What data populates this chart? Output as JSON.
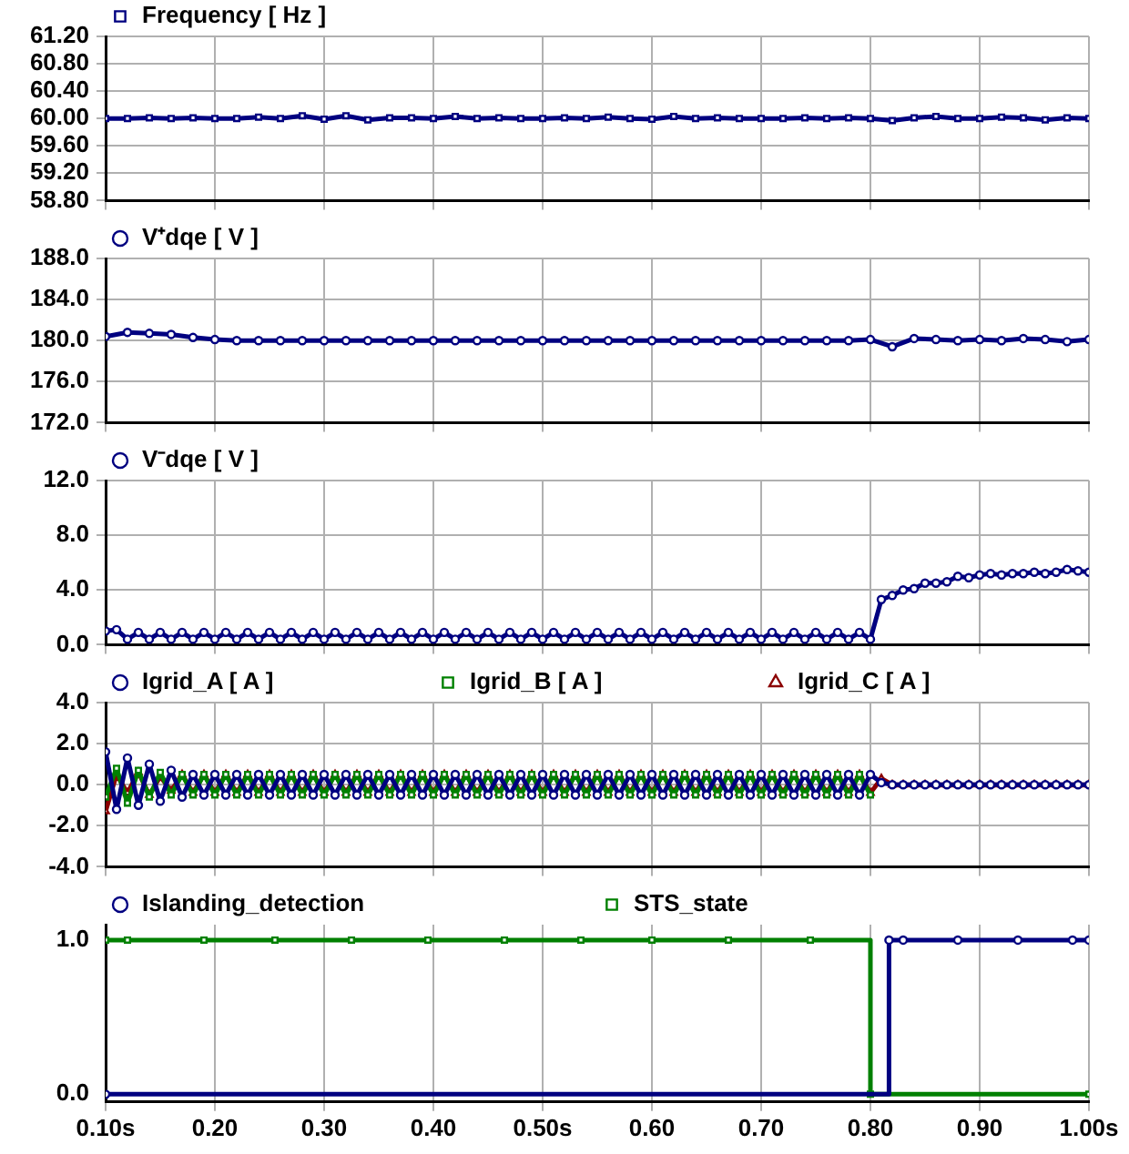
{
  "chart_data": [
    {
      "type": "line",
      "x": [
        0.1,
        0.12,
        0.14,
        0.16,
        0.18,
        0.2,
        0.22,
        0.24,
        0.26,
        0.28,
        0.3,
        0.32,
        0.34,
        0.36,
        0.38,
        0.4,
        0.42,
        0.44,
        0.46,
        0.48,
        0.5,
        0.52,
        0.54,
        0.56,
        0.58,
        0.6,
        0.62,
        0.64,
        0.66,
        0.68,
        0.7,
        0.72,
        0.74,
        0.76,
        0.78,
        0.8,
        0.82,
        0.84,
        0.86,
        0.88,
        0.9,
        0.92,
        0.94,
        0.96,
        0.98,
        1.0
      ],
      "series": [
        {
          "name": "Frequency [ Hz ]",
          "color": "#000080",
          "values": [
            60.0,
            60.0,
            60.01,
            60.0,
            60.01,
            60.0,
            60.0,
            60.02,
            60.0,
            60.04,
            59.99,
            60.04,
            59.98,
            60.01,
            60.01,
            60.0,
            60.03,
            60.0,
            60.01,
            60.0,
            60.0,
            60.01,
            60.0,
            60.02,
            60.0,
            59.99,
            60.03,
            60.0,
            60.01,
            60.0,
            60.0,
            60.0,
            60.01,
            60.0,
            60.01,
            60.0,
            59.97,
            60.01,
            60.03,
            60.0,
            60.0,
            60.02,
            60.01,
            59.98,
            60.01,
            60.0
          ]
        }
      ],
      "xlim": [
        0.1,
        1.0
      ],
      "xticks": [
        {
          "value": 0.1,
          "label": null
        },
        {
          "value": 0.2,
          "label": null
        },
        {
          "value": 0.3,
          "label": null
        },
        {
          "value": 0.4,
          "label": null
        },
        {
          "value": 0.5,
          "label": null
        },
        {
          "value": 0.6,
          "label": null
        },
        {
          "value": 0.7,
          "label": null
        },
        {
          "value": 0.8,
          "label": null
        },
        {
          "value": 0.9,
          "label": null
        },
        {
          "value": 1.0,
          "label": null
        }
      ],
      "ylim": [
        58.8,
        61.2
      ],
      "yticks": [
        {
          "value": 58.8,
          "label": "58.80"
        },
        {
          "value": 59.2,
          "label": "59.20"
        },
        {
          "value": 59.6,
          "label": "59.60"
        },
        {
          "value": 60.0,
          "label": "60.00"
        },
        {
          "value": 60.4,
          "label": "60.40"
        },
        {
          "value": 60.8,
          "label": "60.80"
        },
        {
          "value": 61.2,
          "label": "61.20"
        }
      ],
      "grid": true,
      "legend": "top left",
      "marker": "square",
      "tick_labels": "y"
    },
    {
      "type": "line",
      "x": [
        0.1,
        0.12,
        0.14,
        0.16,
        0.18,
        0.2,
        0.22,
        0.24,
        0.26,
        0.28,
        0.3,
        0.32,
        0.34,
        0.36,
        0.38,
        0.4,
        0.42,
        0.44,
        0.46,
        0.48,
        0.5,
        0.52,
        0.54,
        0.56,
        0.58,
        0.6,
        0.62,
        0.64,
        0.66,
        0.68,
        0.7,
        0.72,
        0.74,
        0.76,
        0.78,
        0.8,
        0.82,
        0.84,
        0.86,
        0.88,
        0.9,
        0.92,
        0.94,
        0.96,
        0.98,
        1.0
      ],
      "series": [
        {
          "name": "V⁺dqe [ V ]",
          "color": "#000080",
          "values": [
            180.4,
            180.8,
            180.7,
            180.6,
            180.3,
            180.1,
            180.0,
            180.0,
            180.0,
            180.0,
            180.0,
            180.0,
            180.0,
            180.0,
            180.0,
            180.0,
            180.0,
            180.0,
            180.0,
            180.0,
            180.0,
            180.0,
            180.0,
            180.0,
            180.0,
            180.0,
            180.0,
            180.0,
            180.0,
            180.0,
            180.0,
            180.0,
            180.0,
            180.0,
            180.0,
            180.1,
            179.4,
            180.2,
            180.1,
            180.0,
            180.1,
            180.0,
            180.2,
            180.1,
            179.9,
            180.1
          ]
        }
      ],
      "xlim": [
        0.1,
        1.0
      ],
      "xticks": [
        {
          "value": 0.1,
          "label": null
        },
        {
          "value": 0.2,
          "label": null
        },
        {
          "value": 0.3,
          "label": null
        },
        {
          "value": 0.4,
          "label": null
        },
        {
          "value": 0.5,
          "label": null
        },
        {
          "value": 0.6,
          "label": null
        },
        {
          "value": 0.7,
          "label": null
        },
        {
          "value": 0.8,
          "label": null
        },
        {
          "value": 0.9,
          "label": null
        },
        {
          "value": 1.0,
          "label": null
        }
      ],
      "ylim": [
        172,
        188
      ],
      "yticks": [
        {
          "value": 172,
          "label": "172.0"
        },
        {
          "value": 176,
          "label": "176.0"
        },
        {
          "value": 180,
          "label": "180.0"
        },
        {
          "value": 184,
          "label": "184.0"
        },
        {
          "value": 188,
          "label": "188.0"
        }
      ],
      "grid": true,
      "legend": "top left",
      "marker": "circle",
      "tick_labels": "y"
    },
    {
      "type": "line",
      "x": [
        0.1,
        0.11,
        0.12,
        0.13,
        0.14,
        0.15,
        0.16,
        0.17,
        0.18,
        0.19,
        0.2,
        0.21,
        0.22,
        0.23,
        0.24,
        0.25,
        0.26,
        0.27,
        0.28,
        0.29,
        0.3,
        0.31,
        0.32,
        0.33,
        0.34,
        0.35,
        0.36,
        0.37,
        0.38,
        0.39,
        0.4,
        0.41,
        0.42,
        0.43,
        0.44,
        0.45,
        0.46,
        0.47,
        0.48,
        0.49,
        0.5,
        0.51,
        0.52,
        0.53,
        0.54,
        0.55,
        0.56,
        0.57,
        0.58,
        0.59,
        0.6,
        0.61,
        0.62,
        0.63,
        0.64,
        0.65,
        0.66,
        0.67,
        0.68,
        0.69,
        0.7,
        0.71,
        0.72,
        0.73,
        0.74,
        0.75,
        0.76,
        0.77,
        0.78,
        0.79,
        0.8,
        0.81,
        0.82,
        0.83,
        0.84,
        0.85,
        0.86,
        0.87,
        0.88,
        0.89,
        0.9,
        0.91,
        0.92,
        0.93,
        0.94,
        0.95,
        0.96,
        0.97,
        0.98,
        0.99,
        1.0
      ],
      "series": [
        {
          "name": "V⁻dqe [ V ]",
          "color": "#000080",
          "values": [
            1.0,
            1.1,
            0.4,
            0.9,
            0.4,
            0.9,
            0.4,
            0.9,
            0.4,
            0.9,
            0.4,
            0.9,
            0.4,
            0.9,
            0.4,
            0.9,
            0.4,
            0.9,
            0.4,
            0.9,
            0.4,
            0.9,
            0.4,
            0.9,
            0.4,
            0.9,
            0.4,
            0.9,
            0.4,
            0.9,
            0.4,
            0.9,
            0.4,
            0.9,
            0.4,
            0.9,
            0.4,
            0.9,
            0.4,
            0.9,
            0.4,
            0.9,
            0.4,
            0.9,
            0.4,
            0.9,
            0.4,
            0.9,
            0.4,
            0.9,
            0.4,
            0.9,
            0.4,
            0.9,
            0.4,
            0.9,
            0.4,
            0.9,
            0.4,
            0.9,
            0.4,
            0.9,
            0.4,
            0.9,
            0.4,
            0.9,
            0.4,
            0.9,
            0.4,
            0.9,
            0.4,
            3.3,
            3.6,
            4.0,
            4.1,
            4.5,
            4.5,
            4.6,
            5.0,
            4.9,
            5.1,
            5.2,
            5.1,
            5.2,
            5.2,
            5.3,
            5.2,
            5.3,
            5.5,
            5.4,
            5.3
          ]
        }
      ],
      "xlim": [
        0.1,
        1.0
      ],
      "xticks": [
        {
          "value": 0.1,
          "label": null
        },
        {
          "value": 0.2,
          "label": null
        },
        {
          "value": 0.3,
          "label": null
        },
        {
          "value": 0.4,
          "label": null
        },
        {
          "value": 0.5,
          "label": null
        },
        {
          "value": 0.6,
          "label": null
        },
        {
          "value": 0.7,
          "label": null
        },
        {
          "value": 0.8,
          "label": null
        },
        {
          "value": 0.9,
          "label": null
        },
        {
          "value": 1.0,
          "label": null
        }
      ],
      "ylim": [
        0,
        12
      ],
      "yticks": [
        {
          "value": 0,
          "label": "0.0"
        },
        {
          "value": 4,
          "label": "4.0"
        },
        {
          "value": 8,
          "label": "8.0"
        },
        {
          "value": 12,
          "label": "12.0"
        }
      ],
      "grid": true,
      "legend": "top left",
      "marker": "circle",
      "tick_labels": "y"
    },
    {
      "type": "line",
      "x": [
        0.1,
        0.11,
        0.12,
        0.13,
        0.14,
        0.15,
        0.16,
        0.17,
        0.18,
        0.19,
        0.2,
        0.21,
        0.22,
        0.23,
        0.24,
        0.25,
        0.26,
        0.27,
        0.28,
        0.29,
        0.3,
        0.31,
        0.32,
        0.33,
        0.34,
        0.35,
        0.36,
        0.37,
        0.38,
        0.39,
        0.4,
        0.41,
        0.42,
        0.43,
        0.44,
        0.45,
        0.46,
        0.47,
        0.48,
        0.49,
        0.5,
        0.51,
        0.52,
        0.53,
        0.54,
        0.55,
        0.56,
        0.57,
        0.58,
        0.59,
        0.6,
        0.61,
        0.62,
        0.63,
        0.64,
        0.65,
        0.66,
        0.67,
        0.68,
        0.69,
        0.7,
        0.71,
        0.72,
        0.73,
        0.74,
        0.75,
        0.76,
        0.77,
        0.78,
        0.79,
        0.8,
        0.81,
        0.82,
        0.83,
        0.84,
        0.85,
        0.86,
        0.87,
        0.88,
        0.89,
        0.9,
        0.91,
        0.92,
        0.93,
        0.94,
        0.95,
        0.96,
        0.97,
        0.98,
        0.99,
        1.0
      ],
      "series": [
        {
          "name": "Igrid_A [ A ]",
          "color": "#000080",
          "marker": "circle",
          "values": [
            1.6,
            -1.2,
            1.3,
            -1.0,
            1.0,
            -0.8,
            0.7,
            -0.6,
            0.5,
            -0.5,
            0.5,
            -0.5,
            0.5,
            -0.5,
            0.5,
            -0.5,
            0.5,
            -0.5,
            0.5,
            -0.5,
            0.5,
            -0.5,
            0.5,
            -0.5,
            0.5,
            -0.5,
            0.5,
            -0.5,
            0.5,
            -0.5,
            0.5,
            -0.5,
            0.5,
            -0.5,
            0.5,
            -0.5,
            0.5,
            -0.5,
            0.5,
            -0.5,
            0.5,
            -0.5,
            0.5,
            -0.5,
            0.5,
            -0.5,
            0.5,
            -0.5,
            0.5,
            -0.5,
            0.5,
            -0.5,
            0.5,
            -0.5,
            0.5,
            -0.5,
            0.5,
            -0.5,
            0.5,
            -0.5,
            0.5,
            -0.5,
            0.5,
            -0.5,
            0.5,
            -0.5,
            0.5,
            -0.5,
            0.5,
            -0.5,
            0.5,
            0.1,
            0,
            0,
            0,
            0,
            0,
            0,
            0,
            0,
            0,
            0,
            0,
            0,
            0,
            0,
            0,
            0,
            0,
            0,
            0
          ]
        },
        {
          "name": "Igrid_B [ A ]",
          "color": "#008000",
          "marker": "square",
          "values": [
            -0.6,
            0.8,
            -0.9,
            0.7,
            -0.6,
            0.6,
            -0.5,
            0.5,
            -0.5,
            0.5,
            -0.5,
            0.5,
            -0.5,
            0.5,
            -0.5,
            0.5,
            -0.5,
            0.5,
            -0.5,
            0.5,
            -0.5,
            0.5,
            -0.5,
            0.5,
            -0.5,
            0.5,
            -0.5,
            0.5,
            -0.5,
            0.5,
            -0.5,
            0.5,
            -0.5,
            0.5,
            -0.5,
            0.5,
            -0.5,
            0.5,
            -0.5,
            0.5,
            -0.5,
            0.5,
            -0.5,
            0.5,
            -0.5,
            0.5,
            -0.5,
            0.5,
            -0.5,
            0.5,
            -0.5,
            0.5,
            -0.5,
            0.5,
            -0.5,
            0.5,
            -0.5,
            0.5,
            -0.5,
            0.5,
            -0.5,
            0.5,
            -0.5,
            0.5,
            -0.5,
            0.5,
            -0.5,
            0.5,
            -0.5,
            0.5,
            -0.5,
            null,
            null,
            null,
            null,
            null,
            null,
            null,
            null,
            null,
            null,
            null,
            null,
            null,
            null,
            null,
            null,
            null,
            null,
            null,
            null
          ]
        },
        {
          "name": "Igrid_C [ A ]",
          "color": "#8b0000",
          "marker": "triangle",
          "values": [
            -1.3,
            0.5,
            -0.4,
            0.6,
            -0.5,
            0.4,
            -0.3,
            0.5,
            -0.4,
            0.5,
            -0.4,
            0.5,
            -0.4,
            0.5,
            -0.4,
            0.5,
            -0.4,
            0.5,
            -0.4,
            0.5,
            -0.4,
            0.5,
            -0.4,
            0.5,
            -0.4,
            0.5,
            -0.4,
            0.5,
            -0.4,
            0.5,
            -0.4,
            0.5,
            -0.4,
            0.5,
            -0.4,
            0.5,
            -0.4,
            0.5,
            -0.4,
            0.5,
            -0.4,
            0.5,
            -0.4,
            0.5,
            -0.4,
            0.5,
            -0.4,
            0.5,
            -0.4,
            0.5,
            -0.4,
            0.5,
            -0.4,
            0.5,
            -0.4,
            0.5,
            -0.4,
            0.5,
            -0.4,
            0.5,
            -0.4,
            0.5,
            -0.4,
            0.5,
            -0.4,
            0.5,
            -0.4,
            0.5,
            -0.4,
            0.5,
            -0.4,
            0.3,
            0,
            0,
            0,
            0,
            0,
            0,
            0,
            0,
            0,
            0,
            0,
            0,
            0,
            0,
            0,
            0,
            0,
            0,
            0
          ]
        }
      ],
      "xlim": [
        0.1,
        1.0
      ],
      "xticks": [
        {
          "value": 0.1,
          "label": null
        },
        {
          "value": 0.2,
          "label": null
        },
        {
          "value": 0.3,
          "label": null
        },
        {
          "value": 0.4,
          "label": null
        },
        {
          "value": 0.5,
          "label": null
        },
        {
          "value": 0.6,
          "label": null
        },
        {
          "value": 0.7,
          "label": null
        },
        {
          "value": 0.8,
          "label": null
        },
        {
          "value": 0.9,
          "label": null
        },
        {
          "value": 1.0,
          "label": null
        }
      ],
      "ylim": [
        -4,
        4
      ],
      "yticks": [
        {
          "value": -4,
          "label": "-4.0"
        },
        {
          "value": -2,
          "label": "-2.0"
        },
        {
          "value": 0,
          "label": "0.0"
        },
        {
          "value": 2,
          "label": "2.0"
        },
        {
          "value": 4,
          "label": "4.0"
        }
      ],
      "grid": true,
      "legend": "top left",
      "tick_labels": "y"
    },
    {
      "type": "step",
      "series": [
        {
          "name": "Islanding_detection",
          "color": "#000080",
          "marker": "circle",
          "x": [
            0.1,
            0.817,
            0.83,
            0.88,
            0.935,
            0.985,
            1.0
          ],
          "values": [
            0,
            1,
            1,
            1,
            1,
            1,
            1
          ]
        },
        {
          "name": "STS_state",
          "color": "#008000",
          "marker": "square",
          "x": [
            0.1,
            0.12,
            0.19,
            0.255,
            0.325,
            0.395,
            0.465,
            0.535,
            0.6,
            0.67,
            0.745,
            0.8,
            1.0
          ],
          "values": [
            1,
            1,
            1,
            1,
            1,
            1,
            1,
            1,
            1,
            1,
            1,
            0,
            0
          ]
        }
      ],
      "xlim": [
        0.1,
        1.0
      ],
      "xticks": [
        {
          "value": 0.1,
          "label": "0.10s"
        },
        {
          "value": 0.2,
          "label": "0.20"
        },
        {
          "value": 0.3,
          "label": "0.30"
        },
        {
          "value": 0.4,
          "label": "0.40"
        },
        {
          "value": 0.5,
          "label": "0.50s"
        },
        {
          "value": 0.6,
          "label": "0.60"
        },
        {
          "value": 0.7,
          "label": "0.70"
        },
        {
          "value": 0.8,
          "label": "0.80"
        },
        {
          "value": 0.9,
          "label": "0.90"
        },
        {
          "value": 1.0,
          "label": "1.00s"
        }
      ],
      "ylim": [
        -0.05,
        1.1
      ],
      "yticks": [
        {
          "value": 0,
          "label": "0.0"
        },
        {
          "value": 1,
          "label": "1.0"
        }
      ],
      "grid": "x",
      "legend": "top left"
    }
  ]
}
